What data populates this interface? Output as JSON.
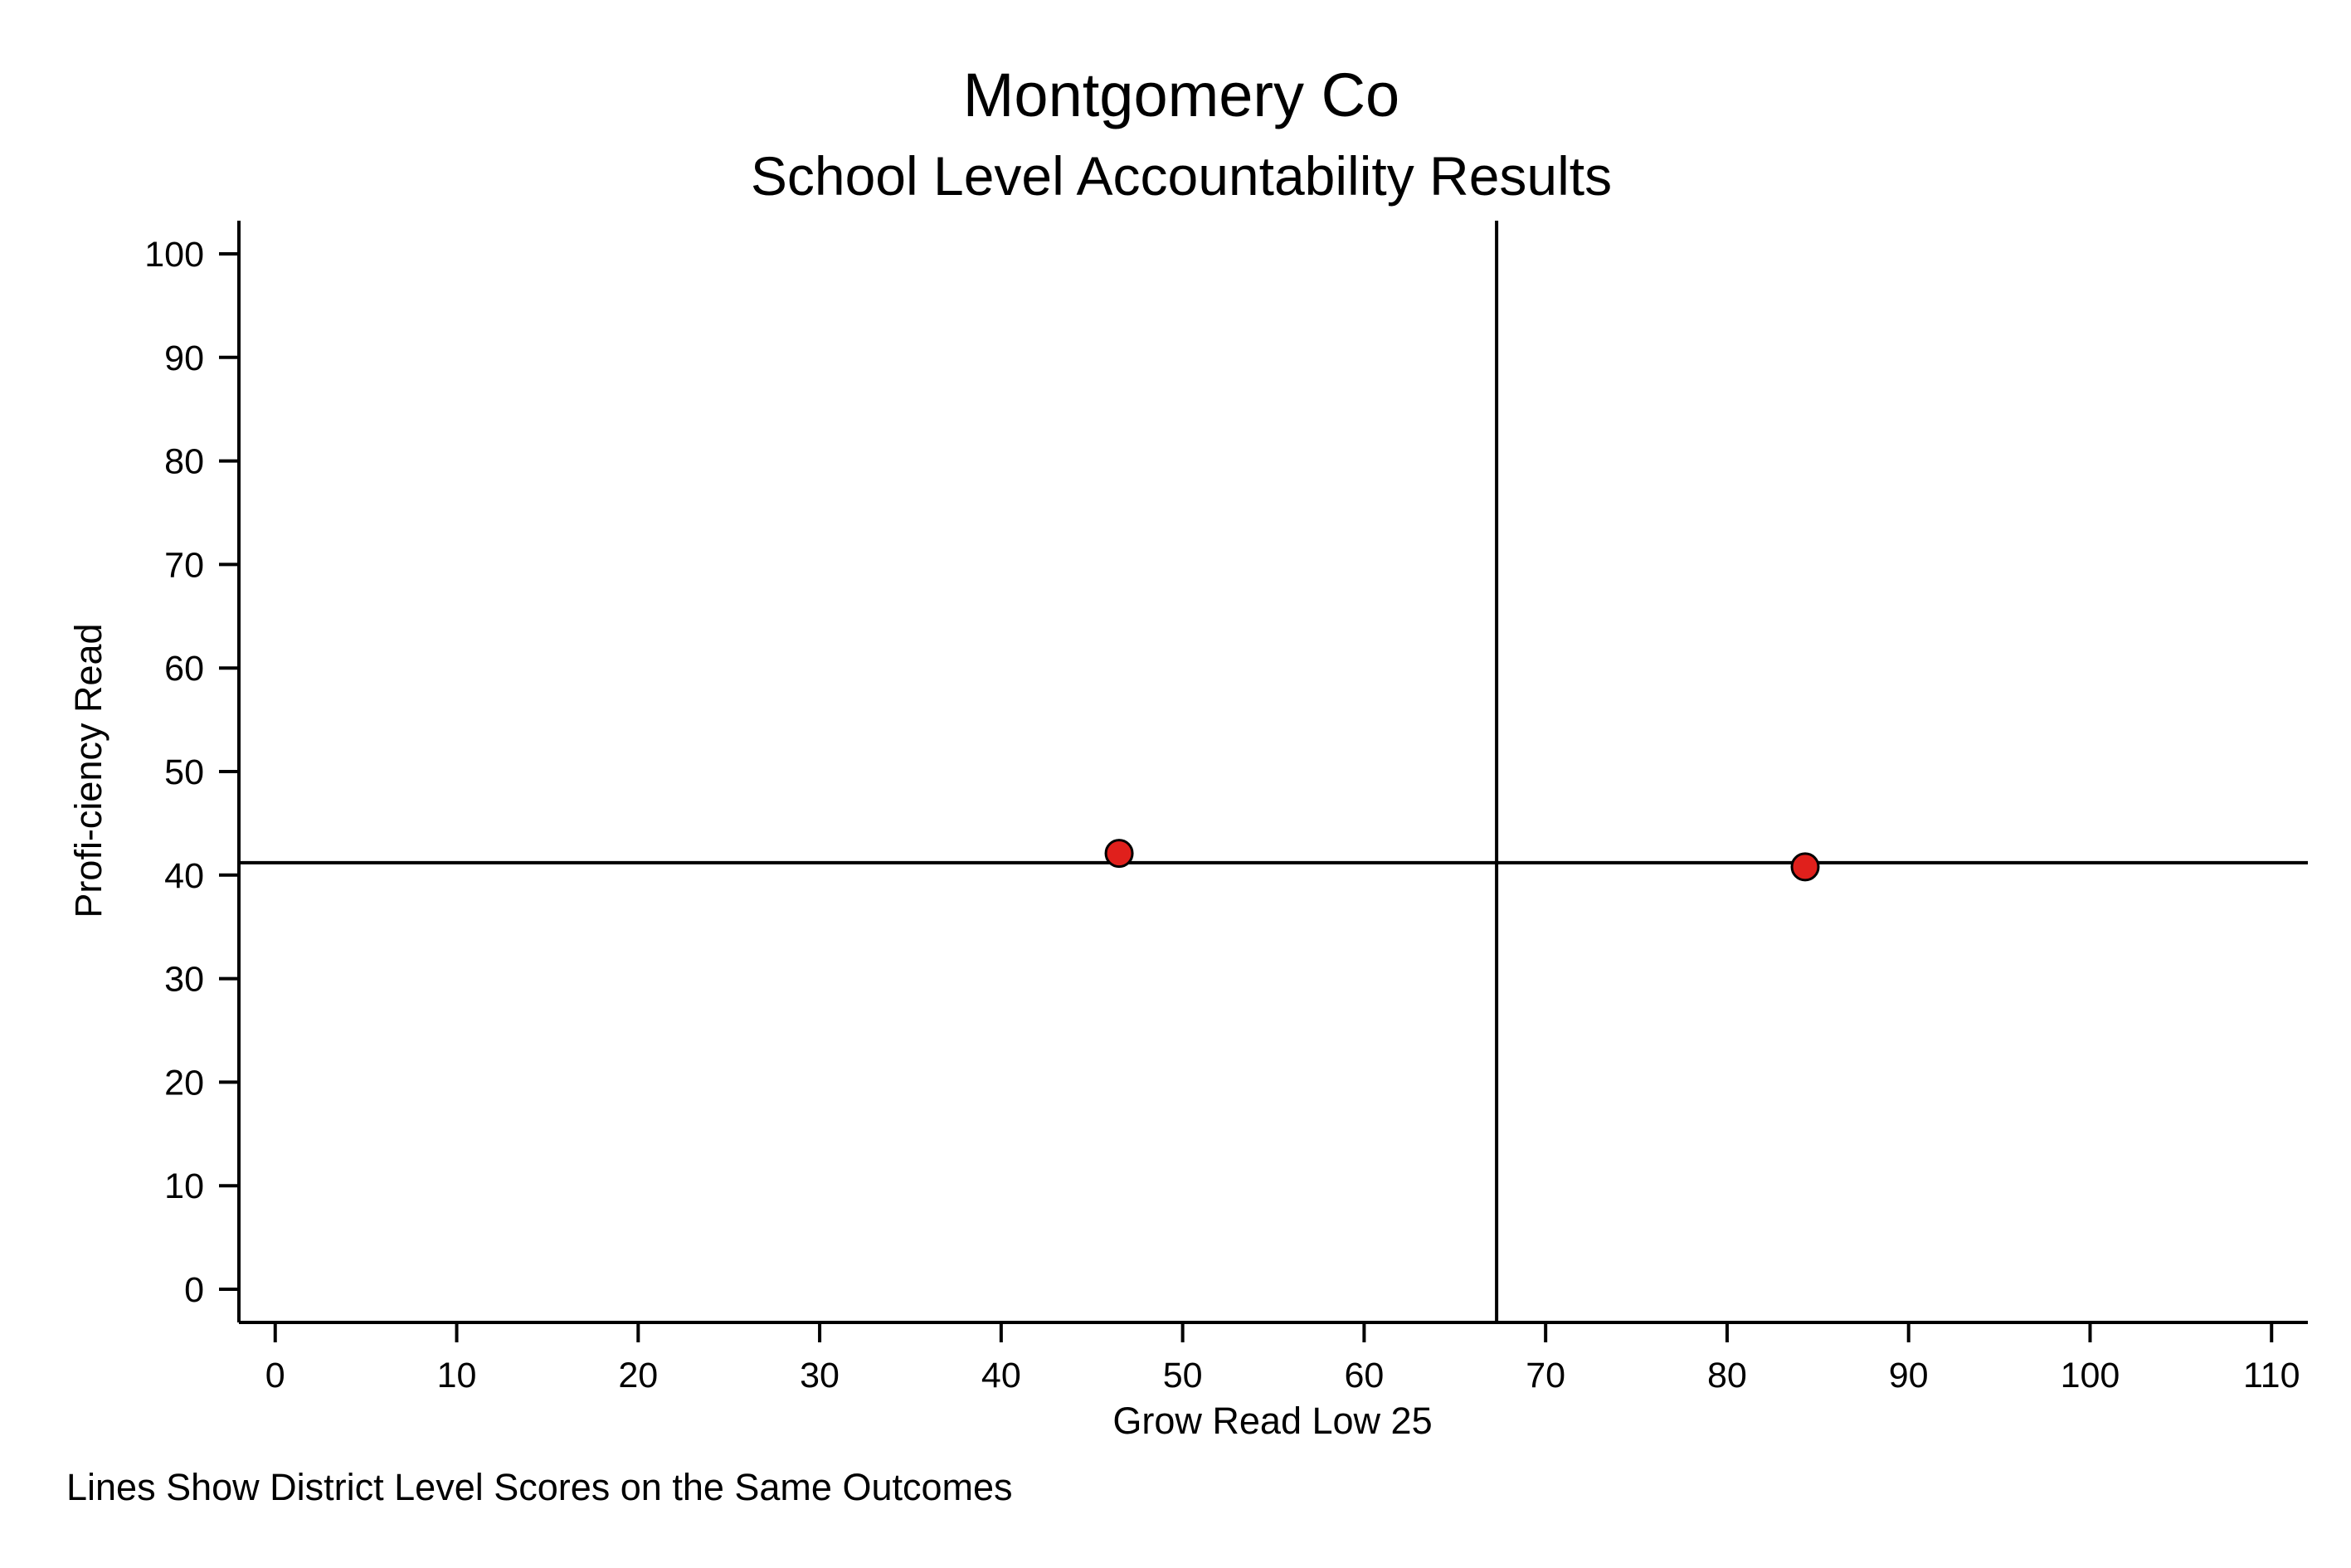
{
  "chart_data": {
    "type": "scatter",
    "title": "Montgomery Co",
    "subtitle": "School Level Accountability Results",
    "xlabel": "Grow Read Low 25",
    "ylabel": "Profi-ciency Read",
    "note": "Lines Show District Level Scores on the Same Outcomes",
    "xlim": [
      -2,
      112
    ],
    "ylim": [
      -3.2,
      103.2
    ],
    "xticks": [
      0,
      10,
      20,
      30,
      40,
      50,
      60,
      70,
      80,
      90,
      100,
      110
    ],
    "yticks": [
      0,
      10,
      20,
      30,
      40,
      50,
      60,
      70,
      80,
      90,
      100
    ],
    "grid": false,
    "reference_lines": {
      "x": 67.3,
      "y": 41.2
    },
    "points": [
      {
        "x": 46.5,
        "y": 42.1
      },
      {
        "x": 84.3,
        "y": 40.8
      }
    ],
    "colors": {
      "marker_fill": "#e0201c",
      "marker_stroke": "#000000",
      "lines": "#000000"
    }
  }
}
